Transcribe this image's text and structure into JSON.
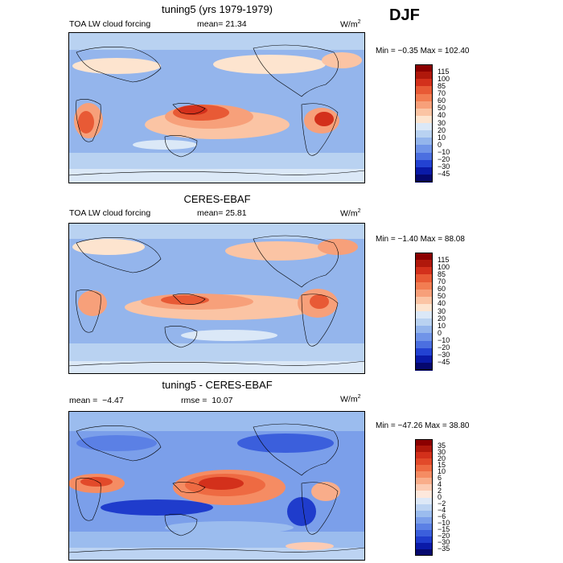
{
  "season": "DJF",
  "units_base": "W/m",
  "units_exp": "2",
  "panels": [
    {
      "title": "tuning5 (yrs 1979-1979)",
      "field_label": "TOA LW cloud forcing",
      "mean_label": "mean=",
      "mean_value": "21.34",
      "rmse_label": "",
      "rmse_value": "",
      "minmax": "Min =  −0.35 Max = 102.40"
    },
    {
      "title": "CERES-EBAF",
      "field_label": "TOA LW cloud forcing",
      "mean_label": "mean=",
      "mean_value": "25.81",
      "rmse_label": "",
      "rmse_value": "",
      "minmax": "Min =  −1.40 Max =  88.08"
    },
    {
      "title": "tuning5 - CERES-EBAF",
      "field_label": "",
      "mean_label": "mean =",
      "mean_value": "−4.47",
      "rmse_label": "rmse =",
      "rmse_value": "10.07",
      "minmax": "Min = −47.26 Max =  38.80"
    }
  ],
  "chart_data": [
    {
      "type": "heatmap",
      "title": "tuning5 (yrs 1979-1979)",
      "colorbar_levels": [
        "115",
        "100",
        "85",
        "70",
        "60",
        "50",
        "40",
        "30",
        "20",
        "10",
        "0",
        "−10",
        "−20",
        "−30",
        "−45"
      ],
      "colorbar_colors": [
        "#8b0000",
        "#b0180b",
        "#d3301b",
        "#e85a35",
        "#f27d52",
        "#f7a07a",
        "#fbc4a4",
        "#fde4cf",
        "#dbe8f7",
        "#b9d2f1",
        "#94b5ec",
        "#7094e8",
        "#4b6fe0",
        "#2342d2",
        "#0a1aa8",
        "#05086e"
      ],
      "mean": 21.34,
      "min": -0.35,
      "max": 102.4
    },
    {
      "type": "heatmap",
      "title": "CERES-EBAF",
      "colorbar_levels": [
        "115",
        "100",
        "85",
        "70",
        "60",
        "50",
        "40",
        "30",
        "20",
        "10",
        "0",
        "−10",
        "−20",
        "−30",
        "−45"
      ],
      "colorbar_colors": [
        "#8b0000",
        "#b0180b",
        "#d3301b",
        "#e85a35",
        "#f27d52",
        "#f7a07a",
        "#fbc4a4",
        "#fde4cf",
        "#dbe8f7",
        "#b9d2f1",
        "#94b5ec",
        "#7094e8",
        "#4b6fe0",
        "#2342d2",
        "#0a1aa8",
        "#05086e"
      ],
      "mean": 25.81,
      "min": -1.4,
      "max": 88.08
    },
    {
      "type": "heatmap",
      "title": "tuning5 - CERES-EBAF",
      "colorbar_levels": [
        "35",
        "30",
        "20",
        "15",
        "10",
        "6",
        "4",
        "2",
        "0",
        "−2",
        "−4",
        "−6",
        "−10",
        "−15",
        "−20",
        "−30",
        "−35"
      ],
      "colorbar_colors": [
        "#8b0000",
        "#b0180b",
        "#d3301b",
        "#e24a2a",
        "#ee6a42",
        "#f58c63",
        "#f9ad8a",
        "#fccbb3",
        "#fde8dc",
        "#dde8f7",
        "#bcd3f2",
        "#9bbcee",
        "#7b9fea",
        "#5b80e5",
        "#3b5fdc",
        "#1f3ccc",
        "#0a1aa8",
        "#05086e"
      ],
      "mean": -4.47,
      "rmse": 10.07,
      "min": -47.26,
      "max": 38.8
    }
  ]
}
